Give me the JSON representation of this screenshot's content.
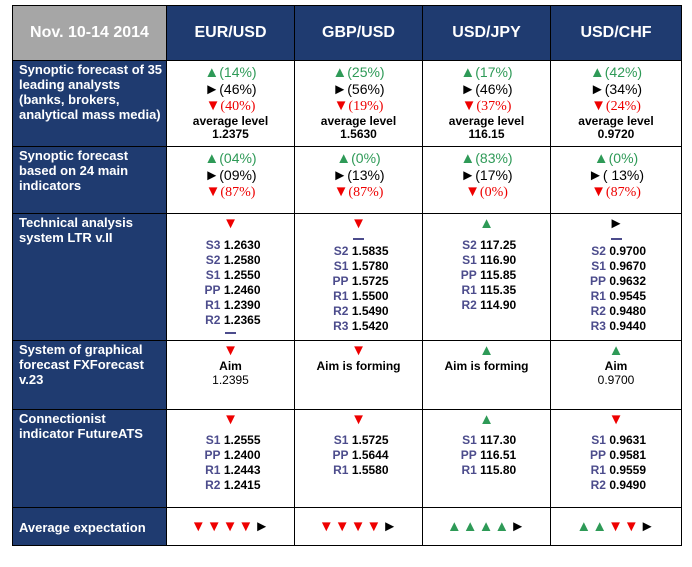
{
  "period": "Nov. 10-14 2014",
  "pairs": [
    "EUR/USD",
    "GBP/USD",
    "USD/JPY",
    "USD/CHF"
  ],
  "rows": {
    "synoptic35": {
      "label": "Synoptic forecast of 35 leading analysts (banks, brokers, analytical mass media)",
      "avg_label": "average level",
      "cells": [
        {
          "up": "(14%)",
          "side": "(46%)",
          "down": "(40%)",
          "avg": "1.2375"
        },
        {
          "up": "(25%)",
          "side": "(56%)",
          "down": "(19%)",
          "avg": "1.5630"
        },
        {
          "up": "(17%)",
          "side": "(46%)",
          "down": "(37%)",
          "avg": "116.15"
        },
        {
          "up": "(42%)",
          "side": "(34%)",
          "down": "(24%)",
          "avg": "0.9720"
        }
      ]
    },
    "synoptic24": {
      "label": "Synoptic forecast based on 24 main indicators",
      "cells": [
        {
          "up": "(04%)",
          "side": "(09%)",
          "down": "(87%)"
        },
        {
          "up": "(0%)",
          "side": "(13%)",
          "down": "(87%)"
        },
        {
          "up": "(83%)",
          "side": "(17%)",
          "down": "(0%)"
        },
        {
          "up": "(0%)",
          "side": "( 13%)",
          "down": "(87%)"
        }
      ]
    },
    "ltr": {
      "label": "Technical analysis system LTR v.II",
      "cells": [
        {
          "signal": "down",
          "levels": [
            [
              "S3",
              "1.2630"
            ],
            [
              "S2",
              "1.2580"
            ],
            [
              "S1",
              "1.2550"
            ],
            [
              "PP",
              "1.2460"
            ],
            [
              "R1",
              "1.2390"
            ],
            [
              "R2",
              "1.2365"
            ]
          ]
        },
        {
          "signal": "down",
          "levels": [
            [
              "S2",
              "1.5835"
            ],
            [
              "S1",
              "1.5780"
            ],
            [
              "PP",
              "1.5725"
            ],
            [
              "R1",
              "1.5500"
            ],
            [
              "R2",
              "1.5490"
            ],
            [
              "R3",
              "1.5420"
            ]
          ]
        },
        {
          "signal": "up",
          "levels": [
            [
              "S2",
              "117.25"
            ],
            [
              "S1",
              "116.90"
            ],
            [
              "PP",
              "115.85"
            ],
            [
              "R1",
              "115.35"
            ],
            [
              "R2",
              "114.90"
            ]
          ]
        },
        {
          "signal": "side",
          "levels": [
            [
              "S2",
              "0.9700"
            ],
            [
              "S1",
              "0.9670"
            ],
            [
              "PP",
              "0.9632"
            ],
            [
              "R1",
              "0.9545"
            ],
            [
              "R2",
              "0.9480"
            ],
            [
              "R3",
              "0.9440"
            ]
          ]
        }
      ]
    },
    "fxforecast": {
      "label": "System of graphical forecast FXForecast v.23",
      "cells": [
        {
          "signal": "down",
          "text": "Aim",
          "value": "1.2395"
        },
        {
          "signal": "down",
          "text": "Aim is forming",
          "value": ""
        },
        {
          "signal": "up",
          "text": "Aim is forming",
          "value": ""
        },
        {
          "signal": "up",
          "text": "Aim",
          "value": "0.9700"
        }
      ]
    },
    "futureats": {
      "label": "Connectionist indicator FutureATS",
      "cells": [
        {
          "signal": "down",
          "levels": [
            [
              "S1",
              "1.2555"
            ],
            [
              "PP",
              "1.2400"
            ],
            [
              "R1",
              "1.2443"
            ],
            [
              "R2",
              "1.2415"
            ]
          ]
        },
        {
          "signal": "down",
          "levels": [
            [
              "S1",
              "1.5725"
            ],
            [
              "PP",
              "1.5644"
            ],
            [
              "R1",
              "1.5580"
            ]
          ]
        },
        {
          "signal": "up",
          "levels": [
            [
              "S1",
              "117.30"
            ],
            [
              "PP",
              "116.51"
            ],
            [
              "R1",
              "115.80"
            ]
          ]
        },
        {
          "signal": "down",
          "levels": [
            [
              "S1",
              "0.9631"
            ],
            [
              "PP",
              "0.9581"
            ],
            [
              "R1",
              "0.9559"
            ],
            [
              "R2",
              "0.9490"
            ]
          ]
        }
      ]
    },
    "average": {
      "label": "Average expectation",
      "cells": [
        [
          "down",
          "down",
          "down",
          "down",
          "side"
        ],
        [
          "down",
          "down",
          "down",
          "down",
          "side"
        ],
        [
          "up",
          "up",
          "up",
          "up",
          "side"
        ],
        [
          "up",
          "up",
          "down",
          "down",
          "side"
        ]
      ]
    }
  },
  "colors": {
    "header_bg": "#1f3b70",
    "corner_bg": "#a6a6a6",
    "up": "#2e9a57",
    "down": "#ee0000",
    "level_key": "#4c4c8c"
  },
  "icons": {
    "up": "triangle-up-icon",
    "down": "triangle-down-icon",
    "side": "triangle-right-icon",
    "flat": "dash-icon"
  }
}
